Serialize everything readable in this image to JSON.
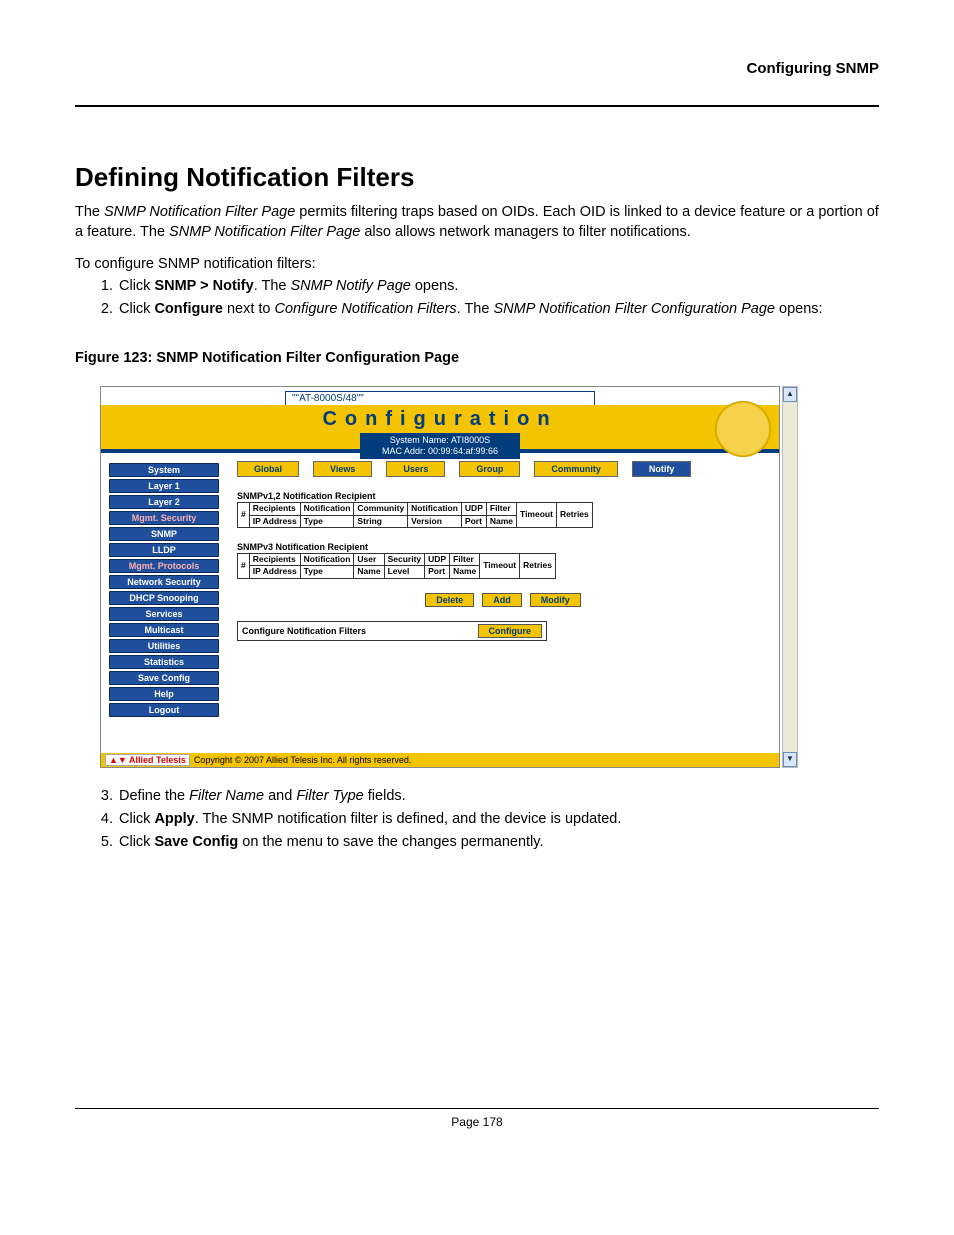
{
  "running_head": "Configuring SNMP",
  "title": "Defining Notification Filters",
  "para1_pre": "The ",
  "para1_i1": "SNMP Notification Filter Page",
  "para1_mid": " permits filtering traps based on OIDs. Each OID is linked to a device feature or a portion of a feature. The ",
  "para1_i2": "SNMP Notification Filter Page",
  "para1_post": " also allows network managers to filter notifications.",
  "lead": "To configure SNMP notification filters:",
  "s1_a": "Click ",
  "s1_b": "SNMP > Notify",
  "s1_c": ". The ",
  "s1_i": "SNMP Notify Page",
  "s1_d": " opens.",
  "s2_a": "Click ",
  "s2_b": "Configure",
  "s2_c": " next to ",
  "s2_i1": "Configure Notification Filters",
  "s2_d": ". The ",
  "s2_i2": "SNMP Notification Filter Configuration Page",
  "s2_e": " opens:",
  "fig_caption": "Figure 123: SNMP Notification Filter Configuration Page",
  "s3_a": "Define the ",
  "s3_i1": "Filter Name",
  "s3_b": " and ",
  "s3_i2": "Filter Type",
  "s3_c": " fields.",
  "s4_a": "Click ",
  "s4_b": "Apply",
  "s4_c": ". The SNMP notification filter is defined, and the device is updated.",
  "s5_a": "Click ",
  "s5_b": "Save Config",
  "s5_c": " on the menu to save the changes permanently.",
  "page_footer": "Page 178",
  "shot": {
    "titlebar": "\"\"AT-8000S/48\"\"",
    "cfg": "Configuration",
    "sys1": "System Name: ATI8000S",
    "sys2": "MAC Addr:  00:99:64:af:99:66",
    "nav": [
      "System",
      "Layer 1",
      "Layer 2",
      "Mgmt. Security",
      "SNMP",
      "LLDP",
      "Mgmt. Protocols",
      "Network Security",
      "DHCP Snooping",
      "Services",
      "Multicast",
      "Utilities",
      "Statistics",
      "Save Config",
      "Help",
      "Logout"
    ],
    "nav_red": {
      "3": true,
      "6": true
    },
    "tabs": [
      "Global",
      "Views",
      "Users",
      "Group",
      "Community",
      "Notify"
    ],
    "active_tab": "Notify",
    "sect1": "SNMPv1,2 Notification Recipient",
    "t1": {
      "c0": "#",
      "c1a": "Recipients",
      "c1b": "IP Address",
      "c2a": "Notification",
      "c2b": "Type",
      "c3a": "Community",
      "c3b": "String",
      "c4a": "Notification",
      "c4b": "Version",
      "c5a": "UDP",
      "c5b": "Port",
      "c6a": "Filter",
      "c6b": "Name",
      "c7": "Timeout",
      "c8": "Retries"
    },
    "sect2": "SNMPv3 Notification Recipient",
    "t2": {
      "c0": "#",
      "c1a": "Recipients",
      "c1b": "IP Address",
      "c2a": "Notification",
      "c2b": "Type",
      "c3a": "User",
      "c3b": "Name",
      "c4a": "Security",
      "c4b": "Level",
      "c5a": "UDP",
      "c5b": "Port",
      "c6a": "Filter",
      "c6b": "Name",
      "c7": "Timeout",
      "c8": "Retries"
    },
    "buttons": [
      "Delete",
      "Add",
      "Modify"
    ],
    "cfgrow_label": "Configure Notification Filters",
    "cfgrow_btn": "Configure",
    "copyright": "Copyright © 2007 Allied Telesis Inc. All rights reserved.",
    "brand": "Allied Telesis"
  }
}
